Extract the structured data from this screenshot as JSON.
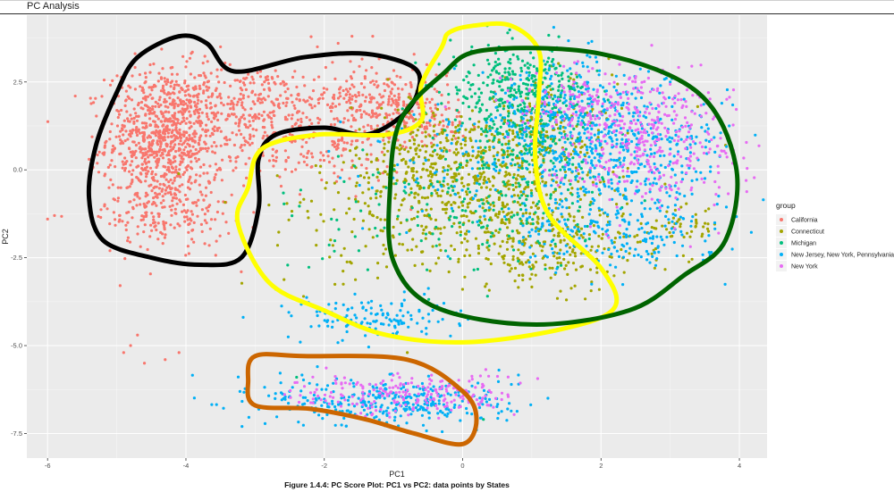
{
  "header": {
    "title": "PC Analysis"
  },
  "caption": "Figure 1.4.4: PC Score Plot: PC1 vs PC2: data points by States",
  "colors": {
    "panel": "#ebebeb",
    "grid_major": "#ffffff",
    "California": "#F8766D",
    "Connecticut": "#A3A500",
    "Michigan": "#00BF7D",
    "New Jersey, New York, Pennsylvania": "#00B0F6",
    "New York": "#E76BF3",
    "outline_black": "#000000",
    "outline_yellow": "#FFFF00",
    "outline_green": "#006400",
    "outline_orange": "#CC6600"
  },
  "chart_data": {
    "type": "scatter",
    "title": "PC Analysis",
    "xlabel": "PC1",
    "ylabel": "PC2",
    "xlim": [
      -6.3,
      4.4
    ],
    "ylim": [
      -8.2,
      4.4
    ],
    "x_ticks": [
      -6,
      -4,
      -2,
      0,
      2,
      4
    ],
    "x_tick_labels": [
      "-6",
      "-4",
      "-2",
      "0",
      "2",
      "4"
    ],
    "y_ticks": [
      -7.5,
      -5.0,
      -2.5,
      0.0,
      2.5
    ],
    "y_tick_labels": [
      "-7.5",
      "-5.0",
      "-2.5",
      "0.0",
      "2.5"
    ],
    "grid": true,
    "legend": {
      "title": "group",
      "position": "right",
      "entries": [
        "California",
        "Connecticut",
        "Michigan",
        "New Jersey, New York, Pennsylvania",
        "New York"
      ]
    },
    "series": [
      {
        "name": "California",
        "color": "#F8766D",
        "clusters": [
          {
            "cx": -4.3,
            "cy": 0.9,
            "sx": 0.42,
            "sy": 1.0,
            "weight": 40
          },
          {
            "cx": -3.1,
            "cy": 1.9,
            "sx": 0.55,
            "sy": 0.55,
            "weight": 12
          },
          {
            "cx": -1.3,
            "cy": 2.0,
            "sx": 0.55,
            "sy": 0.5,
            "weight": 12
          },
          {
            "cx": -2.2,
            "cy": 0.6,
            "sx": 0.7,
            "sy": 0.6,
            "weight": 8
          },
          {
            "cx": -4.3,
            "cy": -1.2,
            "sx": 0.5,
            "sy": 0.5,
            "weight": 8
          },
          {
            "cx": -0.6,
            "cy": 1.4,
            "sx": 0.35,
            "sy": 0.3,
            "weight": 4
          }
        ],
        "outliers": [
          [
            -5.6,
            2.1
          ],
          [
            -5.9,
            -1.3
          ],
          [
            -6.0,
            -1.4
          ],
          [
            -5.4,
            0.3
          ],
          [
            -4.7,
            -4.7
          ],
          [
            -4.9,
            -5.2
          ],
          [
            -4.6,
            -5.5
          ],
          [
            -4.1,
            -5.2
          ],
          [
            -4.3,
            -5.4
          ],
          [
            -4.8,
            -5.0
          ],
          [
            -3.5,
            3.5
          ],
          [
            -3.2,
            -2.9
          ],
          [
            -2.1,
            3.5
          ],
          [
            -1.6,
            3.8
          ],
          [
            -1.3,
            3.8
          ],
          [
            -1.8,
            3.6
          ]
        ]
      },
      {
        "name": "Connecticut",
        "color": "#A3A500",
        "clusters": [
          {
            "cx": -0.4,
            "cy": 0.1,
            "sx": 0.6,
            "sy": 0.9,
            "weight": 14
          },
          {
            "cx": 0.5,
            "cy": -0.6,
            "sx": 0.8,
            "sy": 1.1,
            "weight": 16
          },
          {
            "cx": 1.3,
            "cy": -2.2,
            "sx": 0.9,
            "sy": 0.6,
            "weight": 10
          },
          {
            "cx": 1.2,
            "cy": 0.9,
            "sx": 0.5,
            "sy": 0.8,
            "weight": 8
          },
          {
            "cx": -1.4,
            "cy": -1.6,
            "sx": 0.9,
            "sy": 0.9,
            "weight": 4
          },
          {
            "cx": 3.1,
            "cy": -1.6,
            "sx": 0.3,
            "sy": 0.3,
            "weight": 2
          }
        ],
        "outliers": [
          [
            -2.3,
            -3.6
          ],
          [
            1.5,
            -3.7
          ],
          [
            3.8,
            0.7
          ],
          [
            -2.8,
            -1.0
          ],
          [
            -0.8,
            -5.2
          ]
        ]
      },
      {
        "name": "Michigan",
        "color": "#00BF7D",
        "clusters": [
          {
            "cx": 0.8,
            "cy": 2.3,
            "sx": 0.5,
            "sy": 0.6,
            "weight": 14
          },
          {
            "cx": 1.0,
            "cy": 0.8,
            "sx": 0.5,
            "sy": 0.9,
            "weight": 10
          },
          {
            "cx": 0.5,
            "cy": -1.2,
            "sx": 0.7,
            "sy": 0.9,
            "weight": 6
          },
          {
            "cx": -1.2,
            "cy": -1.3,
            "sx": 0.8,
            "sy": 0.9,
            "weight": 2
          }
        ],
        "outliers": [
          [
            -2.4,
            -5.9
          ],
          [
            -0.4,
            -6.7
          ],
          [
            0.3,
            -7.1
          ],
          [
            -1.5,
            -2.3
          ]
        ]
      },
      {
        "name": "New Jersey, New York, Pennsylvania",
        "color": "#00B0F6",
        "clusters": [
          {
            "cx": 2.3,
            "cy": 0.5,
            "sx": 0.8,
            "sy": 1.0,
            "weight": 22
          },
          {
            "cx": 1.4,
            "cy": 1.6,
            "sx": 0.6,
            "sy": 0.8,
            "weight": 10
          },
          {
            "cx": 2.2,
            "cy": -1.9,
            "sx": 0.8,
            "sy": 0.5,
            "weight": 8
          },
          {
            "cx": -1.3,
            "cy": -4.2,
            "sx": 0.6,
            "sy": 0.3,
            "weight": 6
          },
          {
            "cx": -1.0,
            "cy": -6.6,
            "sx": 0.9,
            "sy": 0.35,
            "weight": 16
          },
          {
            "cx": 0.0,
            "cy": 0.0,
            "sx": 0.8,
            "sy": 1.0,
            "weight": 4
          }
        ],
        "outliers": [
          [
            0.2,
            -7.4
          ],
          [
            -2.1,
            -5.6
          ],
          [
            -2.7,
            -3.4
          ],
          [
            3.0,
            2.5
          ]
        ]
      },
      {
        "name": "New York",
        "color": "#E76BF3",
        "clusters": [
          {
            "cx": 2.6,
            "cy": 0.9,
            "sx": 0.7,
            "sy": 0.9,
            "weight": 18
          },
          {
            "cx": 1.8,
            "cy": 1.9,
            "sx": 0.7,
            "sy": 0.6,
            "weight": 6
          },
          {
            "cx": -0.8,
            "cy": -6.4,
            "sx": 0.8,
            "sy": 0.3,
            "weight": 10
          }
        ],
        "outliers": [
          [
            3.7,
            -1.8
          ],
          [
            -0.1,
            -6.2
          ]
        ]
      }
    ],
    "annotations": {
      "black": [
        [
          -4.1,
          3.8
        ],
        [
          -3.7,
          3.6
        ],
        [
          -3.3,
          2.8
        ],
        [
          -2.3,
          3.2
        ],
        [
          -1.4,
          3.3
        ],
        [
          -0.7,
          2.9
        ],
        [
          -0.65,
          2.2
        ],
        [
          -0.9,
          1.5
        ],
        [
          -1.4,
          1.0
        ],
        [
          -2.0,
          1.2
        ],
        [
          -2.7,
          1.0
        ],
        [
          -2.95,
          0.3
        ],
        [
          -2.95,
          -1.1
        ],
        [
          -3.2,
          -2.5
        ],
        [
          -3.8,
          -2.7
        ],
        [
          -4.5,
          -2.5
        ],
        [
          -5.2,
          -2.0
        ],
        [
          -5.4,
          -0.8
        ],
        [
          -5.3,
          0.7
        ],
        [
          -5.0,
          2.2
        ],
        [
          -4.7,
          3.2
        ]
      ],
      "yellow": [
        [
          0.15,
          4.1
        ],
        [
          0.7,
          4.1
        ],
        [
          1.1,
          3.4
        ],
        [
          1.1,
          2.1
        ],
        [
          1.05,
          0.3
        ],
        [
          1.25,
          -1.3
        ],
        [
          2.0,
          -2.8
        ],
        [
          2.2,
          -3.9
        ],
        [
          1.5,
          -4.5
        ],
        [
          0.1,
          -4.9
        ],
        [
          -1.1,
          -4.7
        ],
        [
          -2.0,
          -4.0
        ],
        [
          -2.8,
          -3.2
        ],
        [
          -3.25,
          -1.5
        ],
        [
          -3.1,
          -0.5
        ],
        [
          -2.9,
          0.6
        ],
        [
          -2.1,
          1.0
        ],
        [
          -1.1,
          1.0
        ],
        [
          -0.6,
          1.4
        ],
        [
          -0.6,
          2.4
        ],
        [
          -0.3,
          3.5
        ],
        [
          -0.2,
          3.9
        ]
      ],
      "green": [
        [
          0.3,
          3.4
        ],
        [
          2.0,
          3.3
        ],
        [
          3.4,
          2.2
        ],
        [
          3.95,
          0.1
        ],
        [
          3.8,
          -2.0
        ],
        [
          3.2,
          -3.0
        ],
        [
          2.4,
          -4.0
        ],
        [
          1.0,
          -4.4
        ],
        [
          -0.4,
          -3.9
        ],
        [
          -1.0,
          -2.6
        ],
        [
          -1.05,
          -0.5
        ],
        [
          -0.9,
          1.4
        ],
        [
          -0.3,
          2.7
        ]
      ],
      "orange": [
        [
          -3.0,
          -5.3
        ],
        [
          -2.3,
          -5.3
        ],
        [
          -0.8,
          -5.4
        ],
        [
          0.0,
          -6.3
        ],
        [
          0.2,
          -7.1
        ],
        [
          0.0,
          -7.8
        ],
        [
          -0.7,
          -7.5
        ],
        [
          -1.4,
          -7.1
        ],
        [
          -2.2,
          -6.8
        ],
        [
          -3.0,
          -6.7
        ],
        [
          -3.1,
          -6.0
        ]
      ]
    }
  }
}
